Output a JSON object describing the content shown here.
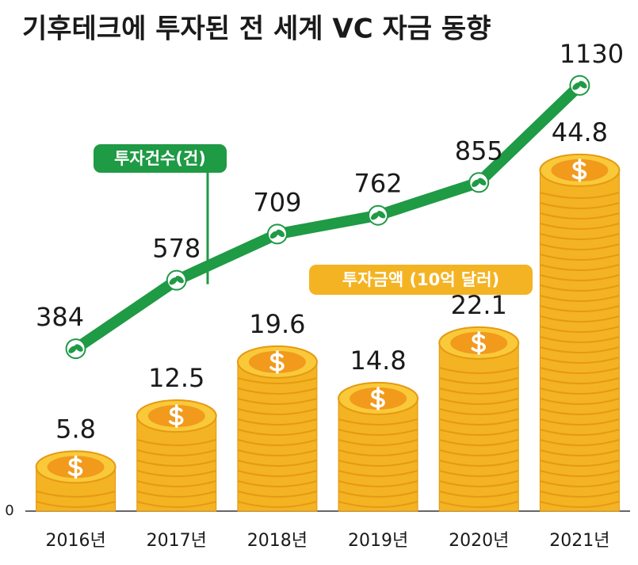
{
  "chart_data": {
    "type": "bar",
    "title": "기후테크에 투자된 전 세계 VC 자금 동향",
    "categories": [
      "2016년",
      "2017년",
      "2018년",
      "2019년",
      "2020년",
      "2021년"
    ],
    "series": [
      {
        "name": "투자금액 (10억 달러)",
        "color": "#f4b323",
        "values": [
          5.8,
          12.5,
          19.6,
          14.8,
          22.1,
          44.8
        ]
      },
      {
        "name": "투자건수(건)",
        "color": "#1f9a45",
        "values": [
          384,
          578,
          709,
          762,
          855,
          1130
        ],
        "axis": "y2"
      }
    ],
    "ylim": [
      0,
      62.5
    ],
    "yticks": [
      0
    ],
    "y2lim": [
      -76,
      1271
    ]
  }
}
